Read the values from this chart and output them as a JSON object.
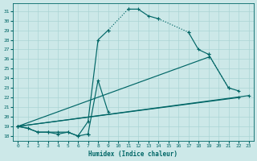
{
  "xlabel": "Humidex (Indice chaleur)",
  "background_color": "#cce8e8",
  "grid_color": "#aad4d4",
  "line_color": "#006666",
  "xlim": [
    -0.5,
    23.5
  ],
  "ylim": [
    17.5,
    31.8
  ],
  "xtick_vals": [
    0,
    1,
    2,
    3,
    4,
    5,
    6,
    7,
    8,
    9,
    10,
    11,
    12,
    13,
    14,
    15,
    16,
    17,
    18,
    19,
    20,
    21,
    22,
    23
  ],
  "ytick_vals": [
    18,
    19,
    20,
    21,
    22,
    23,
    24,
    25,
    26,
    27,
    28,
    29,
    30,
    31
  ],
  "curve_main": [
    [
      0,
      19.0
    ],
    [
      1,
      18.8
    ],
    [
      2,
      18.4
    ],
    [
      3,
      18.4
    ],
    [
      4,
      18.4
    ],
    [
      5,
      18.4
    ],
    [
      6,
      18.0
    ],
    [
      7,
      19.5
    ],
    [
      8,
      28.0
    ],
    [
      9,
      29.0
    ],
    [
      11,
      31.2
    ],
    [
      12,
      31.2
    ],
    [
      13,
      30.5
    ],
    [
      14,
      30.2
    ],
    [
      17,
      28.8
    ],
    [
      18,
      27.0
    ],
    [
      19,
      26.5
    ],
    [
      21,
      23.0
    ],
    [
      22,
      22.7
    ]
  ],
  "curve_zigzag": [
    [
      0,
      19.0
    ],
    [
      1,
      18.8
    ],
    [
      2,
      18.4
    ],
    [
      3,
      18.4
    ],
    [
      4,
      18.2
    ],
    [
      5,
      18.4
    ],
    [
      6,
      18.0
    ],
    [
      7,
      18.2
    ],
    [
      8,
      23.8
    ],
    [
      9,
      20.5
    ]
  ],
  "line1": [
    [
      0,
      19.0
    ],
    [
      19,
      26.2
    ]
  ],
  "line2": [
    [
      0,
      19.0
    ],
    [
      22,
      22.0
    ]
  ],
  "line3": [
    [
      0,
      19.0
    ],
    [
      23,
      22.2
    ]
  ]
}
